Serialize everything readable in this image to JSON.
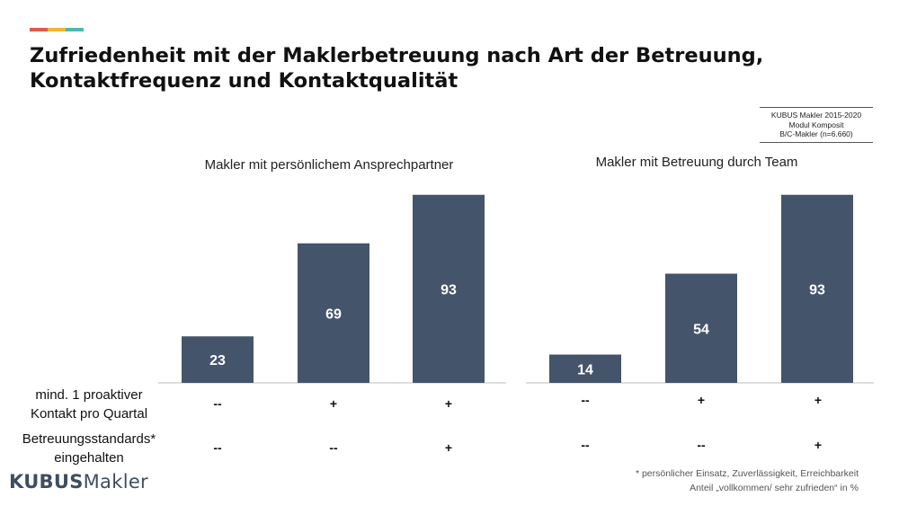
{
  "header": {
    "title_line1": "Zufriedenheit mit der Maklerbetreuung nach Art der Betreuung,",
    "title_line2": "Kontaktfrequenz und Kontaktqualität",
    "accent_colors": [
      "#e05a47",
      "#f2b632",
      "#4cb8b0"
    ]
  },
  "source": {
    "line1": "KUBUS Makler 2015-2020",
    "line2": "Modul Komposit",
    "line3": "B/C-Makler (n=6.660)"
  },
  "chart_data": [
    {
      "type": "bar",
      "title": "Makler mit persönlichem Ansprechpartner",
      "categories": [
        "",
        "",
        ""
      ],
      "values": [
        23,
        69,
        93
      ],
      "ylim": [
        0,
        100
      ],
      "color": "#44546a",
      "grid": false,
      "row_labels": {
        "proactive_contact": [
          "--",
          "+",
          "+"
        ],
        "standards": [
          "--",
          "--",
          "+"
        ]
      }
    },
    {
      "type": "bar",
      "title": "Makler mit Betreuung durch Team",
      "categories": [
        "",
        "",
        ""
      ],
      "values": [
        14,
        54,
        93
      ],
      "ylim": [
        0,
        100
      ],
      "color": "#44546a",
      "grid": false,
      "row_labels": {
        "proactive_contact": [
          "--",
          "+",
          "+"
        ],
        "standards": [
          "--",
          "--",
          "+"
        ]
      }
    }
  ],
  "row_labels": {
    "proactive_line1": "mind. 1 proaktiver",
    "proactive_line2": "Kontakt pro Quartal",
    "standards_line1": "Betreuungsstandards*",
    "standards_line2": "eingehalten"
  },
  "logo": {
    "bold": "KUBUS",
    "regular": "Makler",
    "color": "#3f4d62"
  },
  "footnote": {
    "line1": "* persönlicher Einsatz, Zuverlässigkeit, Erreichbarkeit",
    "line2": "Anteil „vollkommen/ sehr zufrieden“ in %"
  }
}
